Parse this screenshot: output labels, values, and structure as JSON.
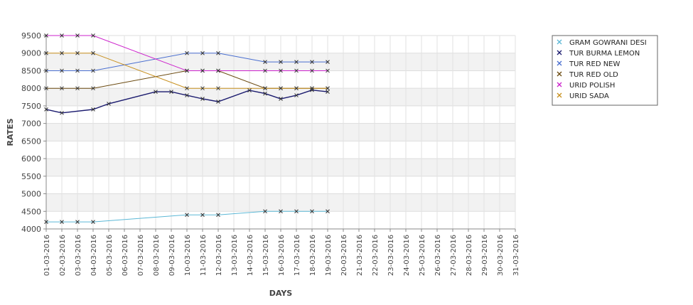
{
  "chart_data": {
    "type": "line",
    "title": "",
    "xlabel": "DAYS",
    "ylabel": "RATES",
    "ylim": [
      4000,
      9500
    ],
    "yticks": [
      4000,
      4500,
      5000,
      5500,
      6000,
      6500,
      7000,
      7500,
      8000,
      8500,
      9000,
      9500
    ],
    "grid": true,
    "legend_position": "top-right",
    "categories": [
      "01-03-2016",
      "02-03-2016",
      "03-03-2016",
      "04-03-2016",
      "05-03-2016",
      "06-03-2016",
      "07-03-2016",
      "08-03-2016",
      "09-03-2016",
      "10-03-2016",
      "11-03-2016",
      "12-03-2016",
      "13-03-2016",
      "14-03-2016",
      "15-03-2016",
      "16-03-2016",
      "17-03-2016",
      "18-03-2016",
      "19-03-2016",
      "20-03-2016",
      "21-03-2016",
      "22-03-2016",
      "23-03-2016",
      "24-03-2016",
      "25-03-2016",
      "26-03-2016",
      "27-03-2016",
      "28-03-2016",
      "29-03-2016",
      "30-03-2016",
      "31-03-2016"
    ],
    "series": [
      {
        "name": "GRAM GOWRANI DESI",
        "color": "#5cb8d6",
        "values": [
          4200,
          4200,
          4200,
          4200,
          null,
          null,
          null,
          null,
          null,
          4400,
          4400,
          4400,
          null,
          null,
          4500,
          4500,
          4500,
          4500,
          4500,
          null,
          null,
          null,
          null,
          null,
          null,
          null,
          null,
          null,
          null,
          null,
          null
        ]
      },
      {
        "name": "TUR BURMA LEMON",
        "color": "#1a1a6e",
        "values": [
          7400,
          7300,
          null,
          7400,
          7560,
          null,
          null,
          7900,
          7900,
          7800,
          7700,
          7620,
          null,
          7940,
          7850,
          7700,
          7800,
          7950,
          7900,
          null,
          null,
          null,
          null,
          null,
          null,
          null,
          null,
          null,
          null,
          null,
          null
        ]
      },
      {
        "name": "TUR RED NEW",
        "color": "#4a6fd0",
        "values": [
          8500,
          8500,
          8500,
          8500,
          null,
          null,
          null,
          null,
          null,
          9000,
          9000,
          9000,
          null,
          null,
          8750,
          8750,
          8750,
          8750,
          8750,
          null,
          null,
          null,
          null,
          null,
          null,
          null,
          null,
          null,
          null,
          null,
          null
        ]
      },
      {
        "name": "TUR RED OLD",
        "color": "#6b4a10",
        "values": [
          8000,
          8000,
          8000,
          8000,
          null,
          null,
          null,
          null,
          null,
          8500,
          8500,
          8500,
          null,
          null,
          8000,
          8000,
          8000,
          8000,
          8000,
          null,
          null,
          null,
          null,
          null,
          null,
          null,
          null,
          null,
          null,
          null,
          null
        ]
      },
      {
        "name": "URID POLISH",
        "color": "#cc22cc",
        "values": [
          9500,
          9500,
          9500,
          9500,
          null,
          null,
          null,
          null,
          null,
          8500,
          8500,
          8500,
          null,
          null,
          8500,
          8500,
          8500,
          8500,
          8500,
          null,
          null,
          null,
          null,
          null,
          null,
          null,
          null,
          null,
          null,
          null,
          null
        ]
      },
      {
        "name": "URID SADA",
        "color": "#c8901e",
        "values": [
          9000,
          9000,
          9000,
          9000,
          null,
          null,
          null,
          null,
          null,
          8000,
          8000,
          8000,
          null,
          null,
          8000,
          8000,
          8000,
          8000,
          8000,
          null,
          null,
          null,
          null,
          null,
          null,
          null,
          null,
          null,
          null,
          null,
          null
        ]
      }
    ]
  }
}
